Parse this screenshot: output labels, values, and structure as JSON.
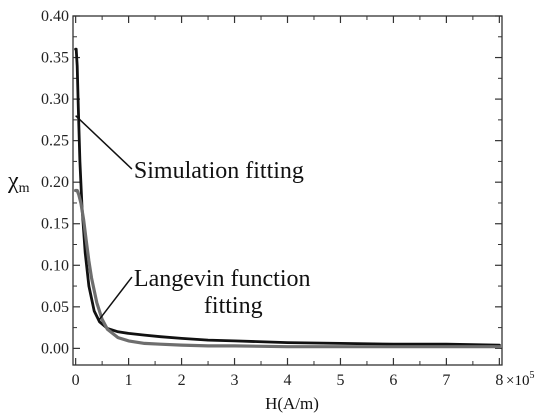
{
  "chart_data": {
    "type": "line",
    "xlabel": "H(A/m)",
    "xlabel_multiplier": "×10",
    "xlabel_exponent": "5",
    "ylabel": "χ",
    "ylabel_subscript": "m",
    "xlim": [
      -0.05,
      8.05
    ],
    "ylim": [
      -0.02,
      0.4
    ],
    "x_ticks": [
      0,
      1,
      2,
      3,
      4,
      5,
      6,
      7,
      8
    ],
    "x_tick_labels": [
      "0",
      "1",
      "2",
      "3",
      "4",
      "5",
      "6",
      "7",
      "8"
    ],
    "y_ticks": [
      0.0,
      0.05,
      0.1,
      0.15,
      0.2,
      0.25,
      0.3,
      0.35,
      0.4
    ],
    "y_tick_labels": [
      "0.00",
      "0.05",
      "0.10",
      "0.15",
      "0.20",
      "0.25",
      "0.30",
      "0.35",
      "0.40"
    ],
    "grid": false,
    "legend": "none",
    "series": [
      {
        "color": "#111111",
        "x": [
          0.0,
          0.01,
          0.03,
          0.05,
          0.08,
          0.12,
          0.18,
          0.25,
          0.35,
          0.45,
          0.6,
          0.8,
          1.0,
          1.3,
          1.6,
          2.0,
          2.5,
          3.0,
          4.0,
          5.0,
          6.0,
          7.0,
          8.0
        ],
        "y": [
          0.36,
          0.36,
          0.34,
          0.29,
          0.225,
          0.17,
          0.115,
          0.075,
          0.045,
          0.032,
          0.024,
          0.02,
          0.018,
          0.016,
          0.014,
          0.012,
          0.01,
          0.009,
          0.007,
          0.006,
          0.005,
          0.005,
          0.004
        ]
      },
      {
        "color": "#6e6e6e",
        "x": [
          0.0,
          0.03,
          0.06,
          0.1,
          0.15,
          0.2,
          0.25,
          0.3,
          0.4,
          0.5,
          0.6,
          0.8,
          1.0,
          1.3,
          1.6,
          2.0,
          2.5,
          3.0,
          4.0,
          5.0,
          6.0,
          7.0,
          8.0
        ],
        "y": [
          0.19,
          0.19,
          0.185,
          0.175,
          0.155,
          0.13,
          0.105,
          0.085,
          0.055,
          0.035,
          0.023,
          0.013,
          0.009,
          0.006,
          0.005,
          0.004,
          0.003,
          0.003,
          0.002,
          0.002,
          0.002,
          0.002,
          0.002
        ]
      }
    ],
    "annotations": [
      {
        "lines": [
          "Simulation fitting"
        ],
        "pointer_x": 0.0,
        "pointer_y": 0.28,
        "text_x": 1.1,
        "text_y": 0.205
      },
      {
        "lines": [
          "Langevin function",
          "fitting"
        ],
        "pointer_x": 0.45,
        "pointer_y": 0.035,
        "text_x": 1.1,
        "text_y": 0.075
      }
    ]
  }
}
